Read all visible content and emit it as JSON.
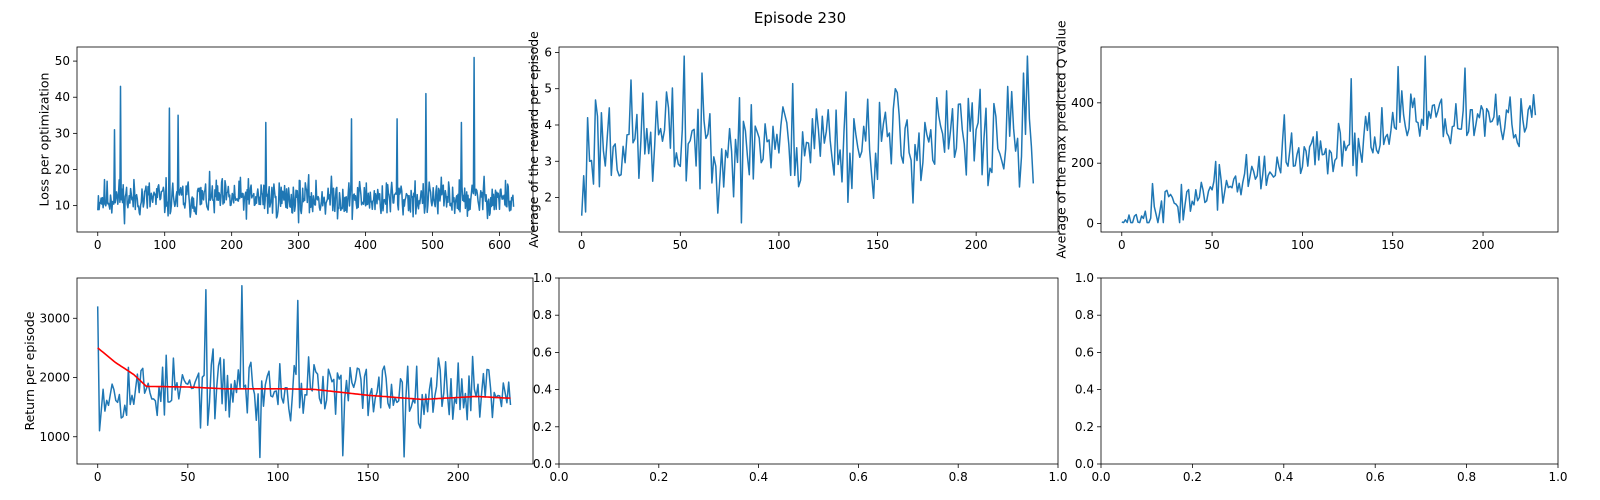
{
  "figure": {
    "title": "Episode 230"
  },
  "colors": {
    "line": "#1f77b4",
    "mean": "#ff0000",
    "axis": "#000000"
  },
  "chart_data": [
    {
      "type": "line",
      "ylabel": "Loss per optimization",
      "xlim": [
        -31,
        650
      ],
      "ylim": [
        2.7,
        53.9
      ],
      "xticks": [
        0,
        100,
        200,
        300,
        400,
        500,
        600
      ],
      "yticks": [
        10,
        20,
        30,
        40,
        50
      ],
      "generator": {
        "n": 622,
        "min": 5,
        "max": 51,
        "base": 12,
        "noise": 4,
        "spikes": [
          [
            25,
            31
          ],
          [
            34,
            43
          ],
          [
            107,
            37
          ],
          [
            120,
            35
          ],
          [
            251,
            33
          ],
          [
            490,
            41
          ],
          [
            562,
            51
          ],
          [
            543,
            33
          ],
          [
            447,
            34
          ],
          [
            379,
            34
          ]
        ],
        "seed": 11
      },
      "series": [
        {
          "values": []
        }
      ]
    },
    {
      "type": "line",
      "ylabel": "Average of the reward per episode",
      "xlim": [
        -11.5,
        241.5
      ],
      "ylim": [
        1.05,
        6.15
      ],
      "xticks": [
        0,
        50,
        100,
        150,
        200
      ],
      "yticks": [
        2,
        3,
        4,
        5,
        6
      ],
      "generator": {
        "n": 230,
        "min": 1.3,
        "max": 5.9,
        "base": 3.6,
        "noise": 1.2,
        "spikes": [
          [
            0,
            1.5
          ],
          [
            1,
            2.6
          ],
          [
            2,
            1.6
          ],
          [
            3,
            4.2
          ],
          [
            52,
            5.9
          ],
          [
            81,
            1.3
          ],
          [
            226,
            5.9
          ]
        ],
        "seed": 23
      },
      "series": [
        {
          "values": []
        }
      ]
    },
    {
      "type": "line",
      "ylabel": "Average of the max predicted Q value",
      "xlim": [
        -11.5,
        241.5
      ],
      "ylim": [
        -28,
        585
      ],
      "xticks": [
        0,
        50,
        100,
        150,
        200
      ],
      "yticks": [
        0,
        200,
        400
      ],
      "generator": {
        "n": 230,
        "min": 3,
        "max": 555,
        "trend": [
          5,
          330
        ],
        "noise": 60,
        "spikes": [
          [
            0,
            5
          ],
          [
            168,
            555
          ],
          [
            153,
            520
          ],
          [
            190,
            515
          ],
          [
            127,
            480
          ],
          [
            90,
            360
          ]
        ],
        "seed": 37
      },
      "series": [
        {
          "values": []
        }
      ]
    },
    {
      "type": "line",
      "ylabel": "Return per episode",
      "xlim": [
        -11.5,
        241.5
      ],
      "ylim": [
        540,
        3680
      ],
      "xticks": [
        0,
        50,
        100,
        150,
        200
      ],
      "yticks": [
        1000,
        2000,
        3000
      ],
      "generator": {
        "n": 230,
        "min": 650,
        "max": 3550,
        "base": 1800,
        "noise": 420,
        "spikes": [
          [
            0,
            3200
          ],
          [
            1,
            1100
          ],
          [
            60,
            3480
          ],
          [
            80,
            3550
          ],
          [
            111,
            3300
          ],
          [
            90,
            650
          ],
          [
            136,
            680
          ],
          [
            170,
            660
          ]
        ],
        "seed": 53
      },
      "series": [
        {
          "values": []
        },
        {
          "values": [],
          "kind": "mean",
          "anchors": [
            [
              0,
              2500
            ],
            [
              10,
              2250
            ],
            [
              20,
              2050
            ],
            [
              27,
              1850
            ],
            [
              50,
              1840
            ],
            [
              70,
              1810
            ],
            [
              100,
              1810
            ],
            [
              120,
              1800
            ],
            [
              150,
              1700
            ],
            [
              180,
              1630
            ],
            [
              210,
              1680
            ],
            [
              229,
              1650
            ]
          ]
        }
      ]
    },
    {
      "type": "line",
      "ylabel": "",
      "xlim": [
        0,
        1
      ],
      "ylim": [
        0,
        1
      ],
      "xticks": [
        0.0,
        0.2,
        0.4,
        0.6,
        0.8,
        1.0
      ],
      "yticks": [
        0.0,
        0.2,
        0.4,
        0.6,
        0.8,
        1.0
      ],
      "tickfmt": 1,
      "series": []
    },
    {
      "type": "line",
      "ylabel": "",
      "xlim": [
        0,
        1
      ],
      "ylim": [
        0,
        1
      ],
      "xticks": [
        0.0,
        0.2,
        0.4,
        0.6,
        0.8,
        1.0
      ],
      "yticks": [
        0.0,
        0.2,
        0.4,
        0.6,
        0.8,
        1.0
      ],
      "tickfmt": 1,
      "series": []
    }
  ]
}
